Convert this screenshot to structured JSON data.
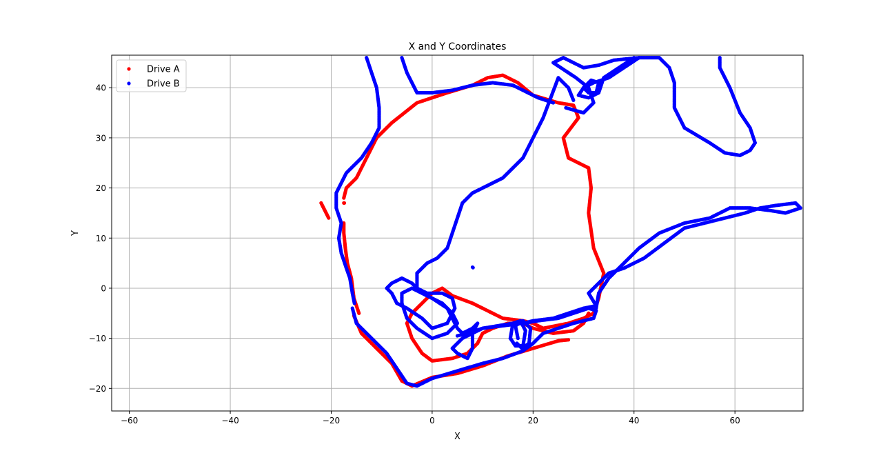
{
  "chart_data": {
    "type": "scatter",
    "title": "X and Y Coordinates",
    "xlabel": "X",
    "ylabel": "Y",
    "xlim": [
      -63.5,
      73.5
    ],
    "ylim": [
      -24.5,
      46.5
    ],
    "xticks": [
      -60,
      -40,
      -20,
      0,
      20,
      40,
      60
    ],
    "yticks": [
      -20,
      -10,
      0,
      10,
      20,
      30,
      40
    ],
    "grid": true,
    "legend_position": "top-left",
    "series": [
      {
        "name": "Drive A",
        "color": "#ff0000",
        "paths": [
          [
            [
              -22,
              17
            ],
            [
              -21.5,
              16
            ],
            [
              -21,
              15
            ],
            [
              -20.5,
              14
            ]
          ],
          [
            [
              -17.5,
              17
            ],
            [
              -17.4,
              17
            ]
          ],
          [
            [
              -17.5,
              13
            ],
            [
              -17.5,
              11
            ],
            [
              -17.2,
              8
            ],
            [
              -16.8,
              5
            ],
            [
              -16,
              2
            ],
            [
              -15.5,
              -2
            ],
            [
              -14.5,
              -5
            ]
          ],
          [
            [
              -15.5,
              -5.5
            ],
            [
              -14,
              -9
            ],
            [
              -11,
              -12
            ],
            [
              -8,
              -15
            ],
            [
              -6,
              -18.5
            ],
            [
              -4,
              -19.5
            ],
            [
              0,
              -17.8
            ],
            [
              5,
              -17
            ],
            [
              10,
              -15.5
            ],
            [
              15,
              -13.5
            ],
            [
              20,
              -12
            ],
            [
              25,
              -10.5
            ],
            [
              27,
              -10.3
            ]
          ],
          [
            [
              -17.5,
              18
            ],
            [
              -17,
              20
            ],
            [
              -15,
              22
            ],
            [
              -13.5,
              25
            ],
            [
              -11,
              30
            ],
            [
              -8,
              33
            ],
            [
              -3,
              37
            ],
            [
              3,
              39
            ],
            [
              8,
              40.5
            ],
            [
              11,
              42
            ],
            [
              14,
              42.5
            ],
            [
              17,
              41
            ],
            [
              20,
              38.5
            ],
            [
              25,
              37
            ],
            [
              28,
              36.5
            ],
            [
              29,
              34
            ],
            [
              26,
              30
            ],
            [
              27,
              26
            ],
            [
              31,
              24
            ],
            [
              31.5,
              20
            ],
            [
              31,
              15
            ],
            [
              32,
              8
            ],
            [
              34,
              3
            ],
            [
              33,
              -2
            ],
            [
              32,
              -5
            ],
            [
              30,
              -6
            ],
            [
              27,
              -7
            ],
            [
              22,
              -8
            ],
            [
              20,
              -7
            ],
            [
              18,
              -6.5
            ],
            [
              14,
              -6
            ],
            [
              12,
              -5
            ],
            [
              8,
              -3
            ],
            [
              4,
              -1.5
            ],
            [
              2,
              0
            ],
            [
              0,
              -1
            ],
            [
              -2,
              -3
            ],
            [
              -4,
              -5
            ],
            [
              -5,
              -7
            ],
            [
              -4,
              -10
            ],
            [
              -2,
              -13
            ],
            [
              0,
              -14.5
            ],
            [
              4,
              -14
            ],
            [
              7,
              -13
            ],
            [
              9,
              -11
            ],
            [
              10,
              -9
            ],
            [
              12,
              -8
            ],
            [
              15,
              -7
            ],
            [
              18,
              -7
            ],
            [
              20,
              -8
            ],
            [
              24,
              -9
            ],
            [
              28,
              -8.5
            ],
            [
              30,
              -7
            ],
            [
              31,
              -5
            ]
          ]
        ]
      },
      {
        "name": "Drive B",
        "color": "#0000ff",
        "paths": [
          [
            [
              -13,
              46
            ],
            [
              -12,
              43
            ],
            [
              -11,
              40
            ],
            [
              -10.5,
              36
            ],
            [
              -10.5,
              32
            ],
            [
              -12,
              29
            ],
            [
              -14,
              26
            ],
            [
              -17,
              23
            ],
            [
              -19,
              19
            ],
            [
              -19,
              16
            ],
            [
              -18,
              13
            ],
            [
              -18.5,
              10
            ],
            [
              -18,
              7
            ],
            [
              -17,
              4
            ],
            [
              -16.3,
              2
            ],
            [
              -15.8,
              -1
            ],
            [
              -15.4,
              -3
            ]
          ],
          [
            [
              -15.8,
              -4
            ],
            [
              -15,
              -7
            ],
            [
              -12,
              -10
            ],
            [
              -9,
              -13
            ],
            [
              -7,
              -16
            ],
            [
              -5,
              -19
            ],
            [
              -3,
              -19.5
            ],
            [
              0,
              -18
            ],
            [
              5,
              -16.5
            ],
            [
              10,
              -15
            ],
            [
              14,
              -14
            ],
            [
              18,
              -12.5
            ],
            [
              20,
              -11
            ],
            [
              22,
              -9
            ],
            [
              25,
              -8
            ],
            [
              28,
              -7
            ],
            [
              30,
              -6.5
            ],
            [
              32,
              -6
            ],
            [
              32.5,
              -4.5
            ],
            [
              31,
              -4
            ],
            [
              28,
              -5
            ],
            [
              25,
              -6
            ],
            [
              21,
              -6.5
            ],
            [
              18,
              -7
            ],
            [
              14,
              -7.5
            ],
            [
              10,
              -8
            ],
            [
              7,
              -9
            ],
            [
              5,
              -9.5
            ]
          ],
          [
            [
              -6,
              46
            ],
            [
              -5,
              43
            ],
            [
              -3,
              39
            ],
            [
              0,
              39
            ],
            [
              4,
              39.5
            ],
            [
              8,
              40.5
            ],
            [
              12,
              41
            ],
            [
              16,
              40.5
            ],
            [
              19,
              39
            ],
            [
              21,
              38
            ],
            [
              24,
              37
            ]
          ],
          [
            [
              26.5,
              36
            ],
            [
              30,
              35
            ],
            [
              32,
              37
            ],
            [
              31,
              40
            ],
            [
              28.5,
              42
            ],
            [
              24,
              45
            ],
            [
              26,
              46
            ],
            [
              30,
              44
            ],
            [
              33,
              44.5
            ],
            [
              36,
              45.5
            ],
            [
              41,
              46
            ],
            [
              45,
              46
            ],
            [
              47,
              44
            ],
            [
              48,
              41
            ],
            [
              48,
              36
            ],
            [
              50,
              32
            ],
            [
              55,
              29
            ],
            [
              58,
              27
            ],
            [
              61,
              26.5
            ],
            [
              63,
              27.5
            ],
            [
              64,
              29
            ],
            [
              63,
              32
            ],
            [
              61,
              35
            ],
            [
              59,
              40
            ],
            [
              57,
              44
            ],
            [
              57,
              46
            ]
          ],
          [
            [
              41,
              46
            ],
            [
              38,
              44
            ],
            [
              35,
              42
            ],
            [
              32,
              41
            ],
            [
              30,
              40
            ],
            [
              29,
              38.5
            ],
            [
              31,
              38
            ],
            [
              33,
              39
            ],
            [
              34,
              42
            ],
            [
              37,
              44
            ],
            [
              40,
              46
            ]
          ],
          [
            [
              30,
              40
            ],
            [
              31.5,
              41.5
            ],
            [
              33,
              41
            ],
            [
              32.5,
              39
            ],
            [
              31,
              39
            ],
            [
              30,
              40
            ]
          ],
          [
            [
              28,
              37.5
            ],
            [
              27,
              40
            ],
            [
              25,
              42
            ],
            [
              22,
              34
            ],
            [
              20,
              30
            ],
            [
              18,
              26
            ],
            [
              16,
              24
            ],
            [
              14,
              22
            ],
            [
              12,
              21
            ],
            [
              10,
              20
            ],
            [
              8,
              19
            ],
            [
              6,
              17
            ],
            [
              5,
              14
            ],
            [
              4,
              11
            ],
            [
              3,
              8
            ],
            [
              1,
              6
            ],
            [
              -1,
              5
            ],
            [
              -3,
              3
            ],
            [
              -3,
              0
            ],
            [
              -1,
              -1
            ],
            [
              2,
              -1
            ],
            [
              4,
              -2
            ],
            [
              4.5,
              -4
            ],
            [
              3,
              -7
            ],
            [
              0,
              -8
            ],
            [
              -2,
              -6
            ],
            [
              -5,
              -4
            ],
            [
              -7,
              -3
            ],
            [
              -8,
              -1
            ],
            [
              -9,
              0
            ],
            [
              -8,
              1
            ],
            [
              -6,
              2
            ],
            [
              -4,
              1
            ],
            [
              -2,
              -1
            ],
            [
              0,
              -2
            ],
            [
              3,
              -4
            ],
            [
              4,
              -6
            ],
            [
              5,
              -8
            ],
            [
              6,
              -9
            ],
            [
              8,
              -8
            ],
            [
              9,
              -7
            ],
            [
              8,
              -9
            ],
            [
              6,
              -10
            ],
            [
              4,
              -12
            ],
            [
              5,
              -13
            ],
            [
              7,
              -14
            ],
            [
              8,
              -12
            ],
            [
              8,
              -9
            ],
            [
              10,
              -8
            ],
            [
              13,
              -7.5
            ],
            [
              16,
              -7
            ],
            [
              18,
              -7
            ],
            [
              20,
              -6.5
            ],
            [
              24,
              -6
            ],
            [
              27,
              -5
            ],
            [
              30,
              -4
            ],
            [
              32.5,
              -3.5
            ],
            [
              31,
              -1
            ],
            [
              33,
              1
            ],
            [
              35,
              3
            ],
            [
              38,
              4
            ],
            [
              42,
              6
            ],
            [
              46,
              9
            ],
            [
              50,
              12
            ],
            [
              54,
              13
            ],
            [
              58,
              14
            ],
            [
              62,
              15
            ],
            [
              65,
              16
            ],
            [
              68,
              16.5
            ],
            [
              72,
              17
            ],
            [
              73,
              16
            ],
            [
              70,
              15
            ],
            [
              67,
              15.5
            ],
            [
              63,
              16
            ],
            [
              59,
              16
            ],
            [
              55,
              14
            ],
            [
              50,
              13
            ],
            [
              45,
              11
            ],
            [
              41,
              8
            ],
            [
              38,
              5
            ],
            [
              35,
              2
            ],
            [
              33,
              -1
            ],
            [
              32.5,
              -4
            ]
          ],
          [
            [
              17,
              -10
            ],
            [
              16.5,
              -7.5
            ],
            [
              18,
              -6.5
            ],
            [
              19.5,
              -8
            ],
            [
              19.2,
              -11
            ],
            [
              17.8,
              -12
            ],
            [
              16.8,
              -11
            ]
          ],
          [
            [
              15.5,
              -10
            ],
            [
              16,
              -7
            ],
            [
              17.5,
              -6.5
            ],
            [
              18.5,
              -8.5
            ],
            [
              18,
              -11.5
            ],
            [
              16.5,
              -11.5
            ],
            [
              15.5,
              -10
            ]
          ],
          [
            [
              -6,
              -3
            ],
            [
              -6,
              -1
            ],
            [
              -4,
              0
            ],
            [
              -2,
              -1
            ],
            [
              0,
              -2
            ],
            [
              2,
              -3
            ],
            [
              4,
              -5
            ],
            [
              5,
              -7
            ],
            [
              3,
              -9
            ],
            [
              0,
              -10
            ],
            [
              -3,
              -8
            ],
            [
              -5,
              -6
            ],
            [
              -6,
              -3
            ]
          ],
          [
            [
              8,
              4.2
            ],
            [
              8.1,
              4.1
            ]
          ]
        ]
      }
    ]
  }
}
